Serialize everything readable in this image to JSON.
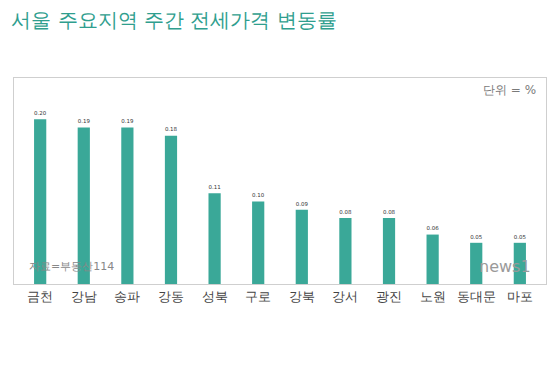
{
  "chart_data": {
    "type": "bar",
    "title": "서울 주요지역 주간 전세가격 변동률",
    "annotations": [
      "단위 = %",
      "자료=부동산114",
      "news1"
    ],
    "categories": [
      "금천",
      "강남",
      "송파",
      "강동",
      "성북",
      "구로",
      "강북",
      "강서",
      "광진",
      "노원",
      "동대문",
      "마포"
    ],
    "values": [
      0.2,
      0.19,
      0.19,
      0.18,
      0.11,
      0.1,
      0.09,
      0.08,
      0.08,
      0.06,
      0.05,
      0.05
    ],
    "value_labels": [
      "0.20",
      "0.19",
      "0.19",
      "0.18",
      "0.11",
      "0.10",
      "0.09",
      "0.08",
      "0.08",
      "0.06",
      "0.05",
      "0.05"
    ],
    "color": "#3aa898",
    "ylim": [
      0,
      0.25
    ],
    "yticks": [],
    "grid": false,
    "data_labels": true,
    "tick_labels": "x"
  }
}
